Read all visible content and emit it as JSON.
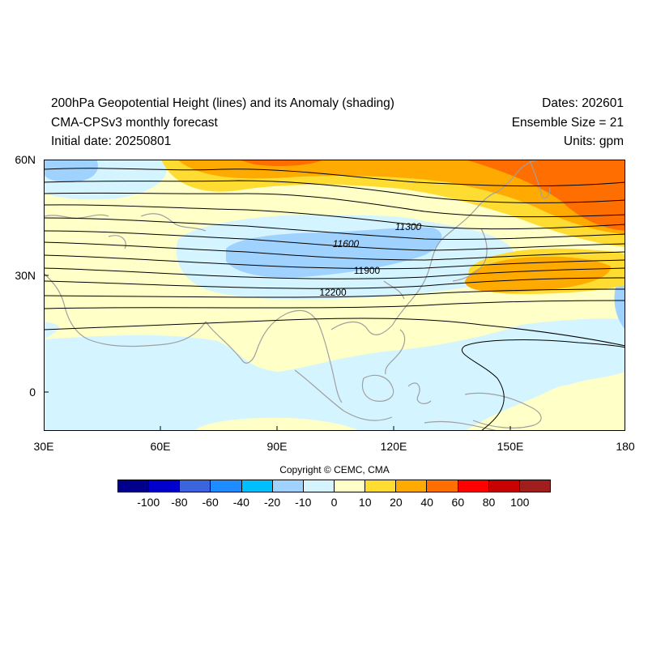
{
  "header": {
    "title": "200hPa Geopotential Height (lines) and its Anomaly (shading)",
    "model": "CMA-CPSv3 monthly forecast",
    "initial": "Initial date: 20250801",
    "dates": "Dates: 202601",
    "ensemble": "Ensemble Size = 21",
    "units": "Units: gpm"
  },
  "map": {
    "lon_range": [
      30,
      180
    ],
    "lat_range": [
      -10,
      60
    ],
    "lon_ticks": [
      "30E",
      "60E",
      "90E",
      "120E",
      "150E",
      "180"
    ],
    "lat_ticks": [
      "60N",
      "30N",
      "0"
    ],
    "contour_labels": [
      "11300",
      "11600",
      "11900",
      "12200"
    ],
    "coastline_color": "#a0a0a0",
    "contour_color": "#000000"
  },
  "colorbar": {
    "colors": [
      "#00008c",
      "#0000cd",
      "#3c64dc",
      "#1e8cff",
      "#00bfff",
      "#a0d2ff",
      "#d4f4ff",
      "#ffffc8",
      "#ffdc32",
      "#ffaa00",
      "#ff6e00",
      "#ff0000",
      "#c80000",
      "#a01e1e"
    ],
    "labels": [
      "-100",
      "-80",
      "-60",
      "-40",
      "-20",
      "-10",
      "0",
      "10",
      "20",
      "40",
      "60",
      "80",
      "100"
    ]
  },
  "copyright": "Copyright © CEMC, CMA"
}
